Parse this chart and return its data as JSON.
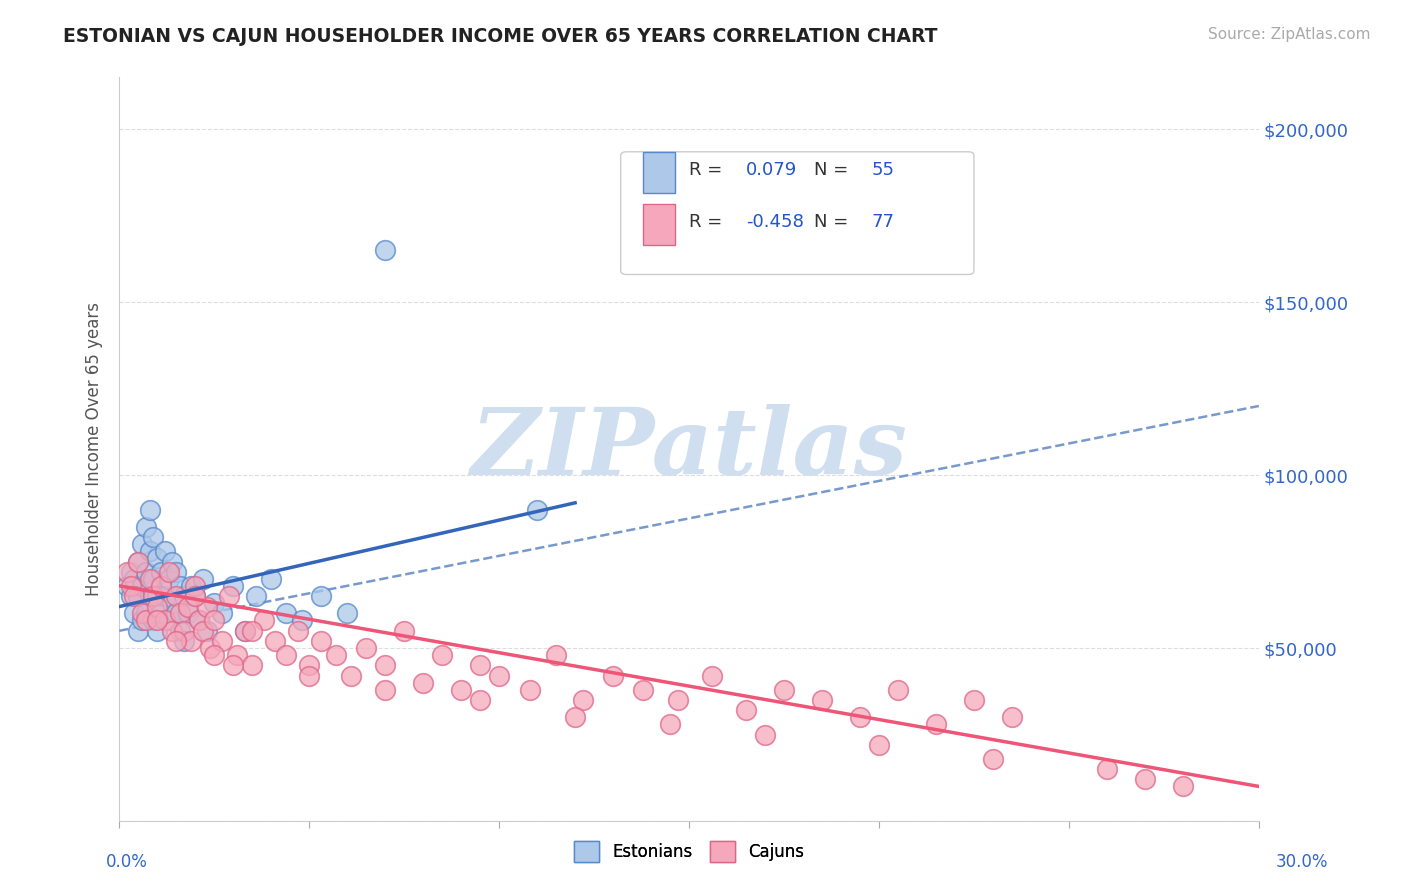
{
  "title": "ESTONIAN VS CAJUN HOUSEHOLDER INCOME OVER 65 YEARS CORRELATION CHART",
  "source": "Source: ZipAtlas.com",
  "ylabel": "Householder Income Over 65 years",
  "ylim": [
    0,
    215000
  ],
  "xlim": [
    0.0,
    0.3
  ],
  "yticks": [
    0,
    50000,
    100000,
    150000,
    200000
  ],
  "ytick_labels": [
    "",
    "$50,000",
    "$100,000",
    "$150,000",
    "$200,000"
  ],
  "legend_1_R": "0.079",
  "legend_1_N": "55",
  "legend_2_R": "-0.458",
  "legend_2_N": "77",
  "estonian_color": "#adc8e8",
  "cajun_color": "#f5a8bb",
  "estonian_edge": "#5588cc",
  "cajun_edge": "#dd6688",
  "trend_estonian_color": "#3366bb",
  "trend_cajun_color": "#ee5577",
  "trend_dashed_color": "#7799cc",
  "watermark_text": "ZIPatlas",
  "watermark_color": "#d0dff0",
  "background_color": "#ffffff",
  "estonian_x": [
    0.002,
    0.003,
    0.003,
    0.004,
    0.004,
    0.005,
    0.005,
    0.005,
    0.006,
    0.006,
    0.006,
    0.007,
    0.007,
    0.007,
    0.008,
    0.008,
    0.008,
    0.009,
    0.009,
    0.009,
    0.01,
    0.01,
    0.01,
    0.011,
    0.011,
    0.012,
    0.012,
    0.013,
    0.013,
    0.014,
    0.014,
    0.015,
    0.015,
    0.016,
    0.016,
    0.017,
    0.017,
    0.018,
    0.019,
    0.02,
    0.021,
    0.022,
    0.023,
    0.025,
    0.027,
    0.03,
    0.033,
    0.036,
    0.04,
    0.044,
    0.048,
    0.053,
    0.06,
    0.07,
    0.11
  ],
  "estonian_y": [
    68000,
    72000,
    65000,
    70000,
    60000,
    75000,
    65000,
    55000,
    80000,
    68000,
    58000,
    85000,
    72000,
    60000,
    90000,
    78000,
    65000,
    82000,
    70000,
    58000,
    76000,
    65000,
    55000,
    72000,
    60000,
    78000,
    65000,
    70000,
    58000,
    75000,
    63000,
    72000,
    60000,
    68000,
    55000,
    65000,
    52000,
    60000,
    68000,
    65000,
    58000,
    70000,
    55000,
    63000,
    60000,
    68000,
    55000,
    65000,
    70000,
    60000,
    58000,
    65000,
    60000,
    165000,
    90000
  ],
  "cajun_x": [
    0.002,
    0.003,
    0.004,
    0.005,
    0.006,
    0.007,
    0.008,
    0.009,
    0.01,
    0.011,
    0.012,
    0.013,
    0.014,
    0.015,
    0.016,
    0.017,
    0.018,
    0.019,
    0.02,
    0.021,
    0.022,
    0.023,
    0.024,
    0.025,
    0.027,
    0.029,
    0.031,
    0.033,
    0.035,
    0.038,
    0.041,
    0.044,
    0.047,
    0.05,
    0.053,
    0.057,
    0.061,
    0.065,
    0.07,
    0.075,
    0.08,
    0.085,
    0.09,
    0.095,
    0.1,
    0.108,
    0.115,
    0.122,
    0.13,
    0.138,
    0.147,
    0.156,
    0.165,
    0.175,
    0.185,
    0.195,
    0.205,
    0.215,
    0.225,
    0.235,
    0.01,
    0.015,
    0.02,
    0.025,
    0.03,
    0.035,
    0.05,
    0.07,
    0.095,
    0.12,
    0.145,
    0.17,
    0.2,
    0.23,
    0.26,
    0.27,
    0.28
  ],
  "cajun_y": [
    72000,
    68000,
    65000,
    75000,
    60000,
    58000,
    70000,
    65000,
    62000,
    68000,
    58000,
    72000,
    55000,
    65000,
    60000,
    55000,
    62000,
    52000,
    68000,
    58000,
    55000,
    62000,
    50000,
    58000,
    52000,
    65000,
    48000,
    55000,
    45000,
    58000,
    52000,
    48000,
    55000,
    45000,
    52000,
    48000,
    42000,
    50000,
    45000,
    55000,
    40000,
    48000,
    38000,
    45000,
    42000,
    38000,
    48000,
    35000,
    42000,
    38000,
    35000,
    42000,
    32000,
    38000,
    35000,
    30000,
    38000,
    28000,
    35000,
    30000,
    58000,
    52000,
    65000,
    48000,
    45000,
    55000,
    42000,
    38000,
    35000,
    30000,
    28000,
    25000,
    22000,
    18000,
    15000,
    12000,
    10000
  ],
  "trend_est_x0": 0.0,
  "trend_est_x1": 0.12,
  "trend_est_y0": 62000,
  "trend_est_y1": 92000,
  "trend_caj_x0": 0.0,
  "trend_caj_x1": 0.3,
  "trend_caj_y0": 68000,
  "trend_caj_y1": 10000,
  "trend_dash_x0": 0.0,
  "trend_dash_x1": 0.3,
  "trend_dash_y0": 55000,
  "trend_dash_y1": 120000
}
